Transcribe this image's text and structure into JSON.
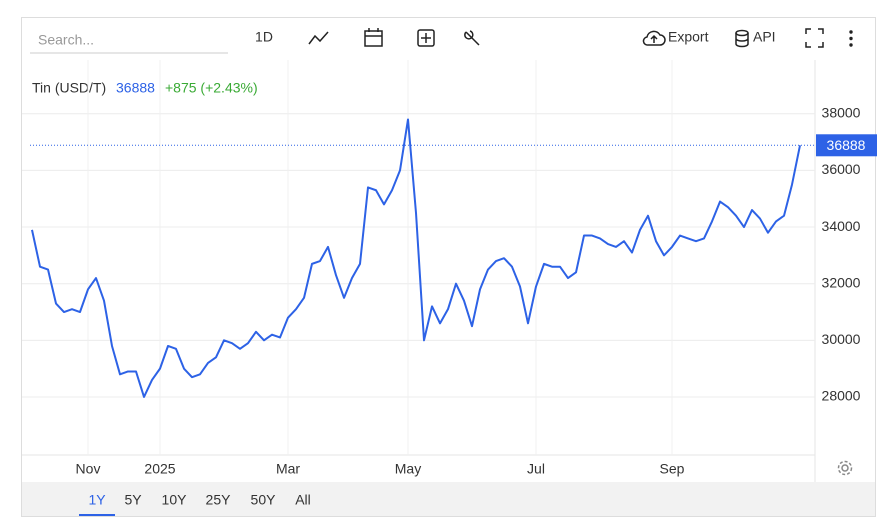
{
  "toolbar": {
    "search": "Search...",
    "interval": "1D",
    "export": "Export",
    "api": "API"
  },
  "ranges": [
    "1Y",
    "5Y",
    "10Y",
    "25Y",
    "50Y",
    "All"
  ],
  "active_range": 0,
  "chart_data": {
    "type": "line",
    "title": "Tin (USD/T)",
    "change_label": "+875 (+2.43%)",
    "color": "#2d62e6",
    "change_color": "#3aaa35",
    "grid": true,
    "categories": [
      null,
      null,
      null,
      null,
      null,
      null,
      null,
      "Nov",
      null,
      null,
      null,
      null,
      null,
      null,
      null,
      null,
      "2025",
      null,
      null,
      null,
      null,
      null,
      null,
      null,
      null,
      null,
      null,
      null,
      null,
      null,
      null,
      null,
      "Mar",
      null,
      null,
      null,
      null,
      null,
      null,
      null,
      null,
      null,
      null,
      null,
      null,
      null,
      null,
      "May",
      null,
      null,
      null,
      null,
      null,
      null,
      null,
      null,
      null,
      null,
      null,
      null,
      null,
      null,
      null,
      "Jul",
      null,
      null,
      null,
      null,
      null,
      null,
      null,
      null,
      null,
      null,
      null,
      null,
      null,
      null,
      null,
      null,
      "Sep",
      null,
      null,
      null,
      null,
      null,
      null,
      null,
      null,
      null,
      null,
      null,
      null,
      null,
      null,
      null,
      null
    ],
    "values": [
      33900,
      32600,
      32500,
      31300,
      31000,
      31100,
      31000,
      31800,
      32200,
      31400,
      29800,
      28800,
      28900,
      28900,
      28000,
      28600,
      29000,
      29800,
      29700,
      29000,
      28700,
      28800,
      29200,
      29400,
      30000,
      29900,
      29700,
      29900,
      30300,
      30000,
      30200,
      30100,
      30800,
      31100,
      31500,
      32700,
      32800,
      33300,
      32300,
      31500,
      32200,
      32700,
      35400,
      35300,
      34800,
      35300,
      36000,
      37800,
      34500,
      30000,
      31200,
      30600,
      31100,
      32000,
      31400,
      30500,
      31800,
      32500,
      32800,
      32900,
      32600,
      31900,
      30600,
      31900,
      32700,
      32600,
      32600,
      32200,
      32400,
      33700,
      33700,
      33600,
      33400,
      33300,
      33500,
      33100,
      33900,
      34400,
      33500,
      33000,
      33300,
      33700,
      33600,
      33500,
      33600,
      34200,
      34900,
      34700,
      34400,
      34000,
      34600,
      34300,
      33800,
      34200,
      34400,
      35500,
      36888
    ],
    "ylim": [
      25950,
      39900
    ],
    "yticks": [
      28000,
      30000,
      32000,
      34000,
      36000,
      38000
    ]
  }
}
